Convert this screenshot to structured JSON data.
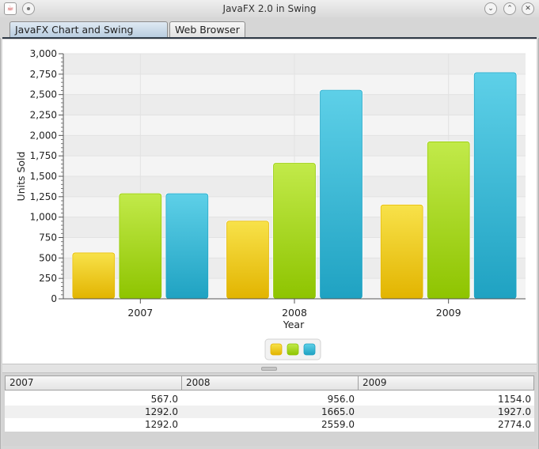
{
  "window": {
    "title": "JavaFX 2.0 in Swing",
    "app_icon": "java-icon",
    "buttons": [
      "minimize-icon",
      "maximize-icon",
      "close-icon"
    ]
  },
  "tabs": [
    {
      "label": "JavaFX Chart and Swing JTable",
      "active": true
    },
    {
      "label": "Web Browser",
      "active": false
    }
  ],
  "chart_data": {
    "type": "bar",
    "categories": [
      "2007",
      "2008",
      "2009"
    ],
    "series": [
      {
        "name": "",
        "values": [
          567.0,
          956.0,
          1154.0
        ],
        "color": "#f0c81e"
      },
      {
        "name": "",
        "values": [
          1292.0,
          1665.0,
          1927.0
        ],
        "color": "#a8d626"
      },
      {
        "name": "",
        "values": [
          1292.0,
          2559.0,
          2774.0
        ],
        "color": "#37b9d6"
      }
    ],
    "xlabel": "Year",
    "ylabel": "Units Sold",
    "ylim": [
      0,
      3000
    ],
    "yticks": [
      0,
      250,
      500,
      750,
      1000,
      1250,
      1500,
      1750,
      2000,
      2250,
      2500,
      2750,
      3000
    ],
    "ytick_labels": [
      "0",
      "250",
      "500",
      "750",
      "1,000",
      "1,250",
      "1,500",
      "1,750",
      "2,000",
      "2,250",
      "2,500",
      "2,750",
      "3,000"
    ],
    "grid": true,
    "legend_position": "bottom"
  },
  "table": {
    "columns": [
      "2007",
      "2008",
      "2009"
    ],
    "rows": [
      [
        "567.0",
        "956.0",
        "1154.0"
      ],
      [
        "1292.0",
        "1665.0",
        "1927.0"
      ],
      [
        "1292.0",
        "2559.0",
        "2774.0"
      ]
    ]
  }
}
